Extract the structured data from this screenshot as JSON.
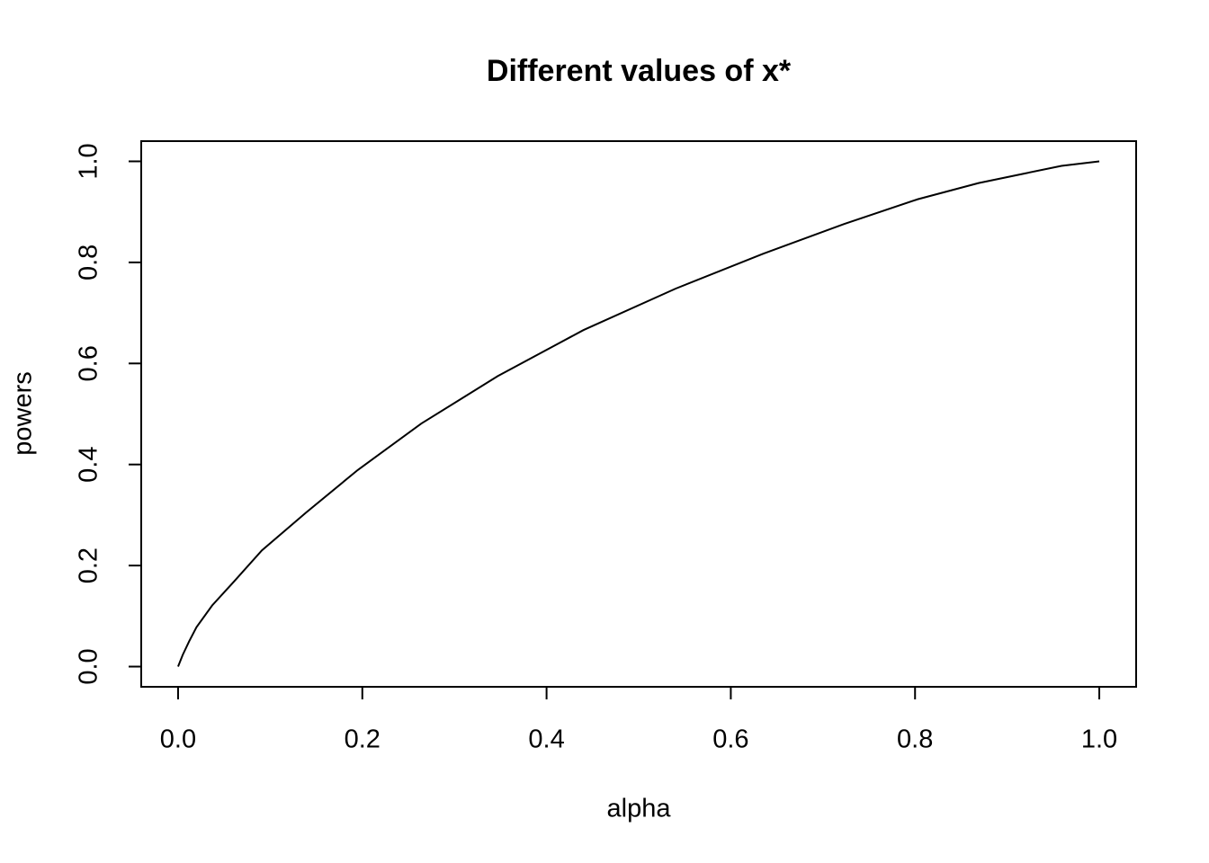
{
  "chart_data": {
    "type": "line",
    "title": "Different values of x*",
    "x_label": "alpha",
    "y_label": "powers",
    "x": [
      0,
      0.005,
      0.012,
      0.02,
      0.037,
      0.061,
      0.091,
      0.139,
      0.195,
      0.264,
      0.347,
      0.44,
      0.54,
      0.635,
      0.723,
      0.803,
      0.869,
      0.919,
      0.959,
      1
    ],
    "values": [
      0,
      0.023,
      0.05,
      0.078,
      0.121,
      0.169,
      0.23,
      0.305,
      0.389,
      0.481,
      0.575,
      0.666,
      0.748,
      0.817,
      0.876,
      0.925,
      0.957,
      0.976,
      0.991,
      1
    ],
    "color": "#000000",
    "xlim": [
      -0.04,
      1.04
    ],
    "ylim": [
      -0.04,
      1.04
    ],
    "xticks": [
      {
        "value": 0,
        "label": "0.0"
      },
      0.2,
      0.4,
      0.6,
      0.8,
      {
        "value": 1,
        "label": "1.0"
      }
    ],
    "yticks": [
      {
        "value": 0,
        "label": "0.0"
      },
      0.2,
      0.4,
      0.6,
      0.8,
      {
        "value": 1,
        "label": "1.0"
      }
    ]
  }
}
